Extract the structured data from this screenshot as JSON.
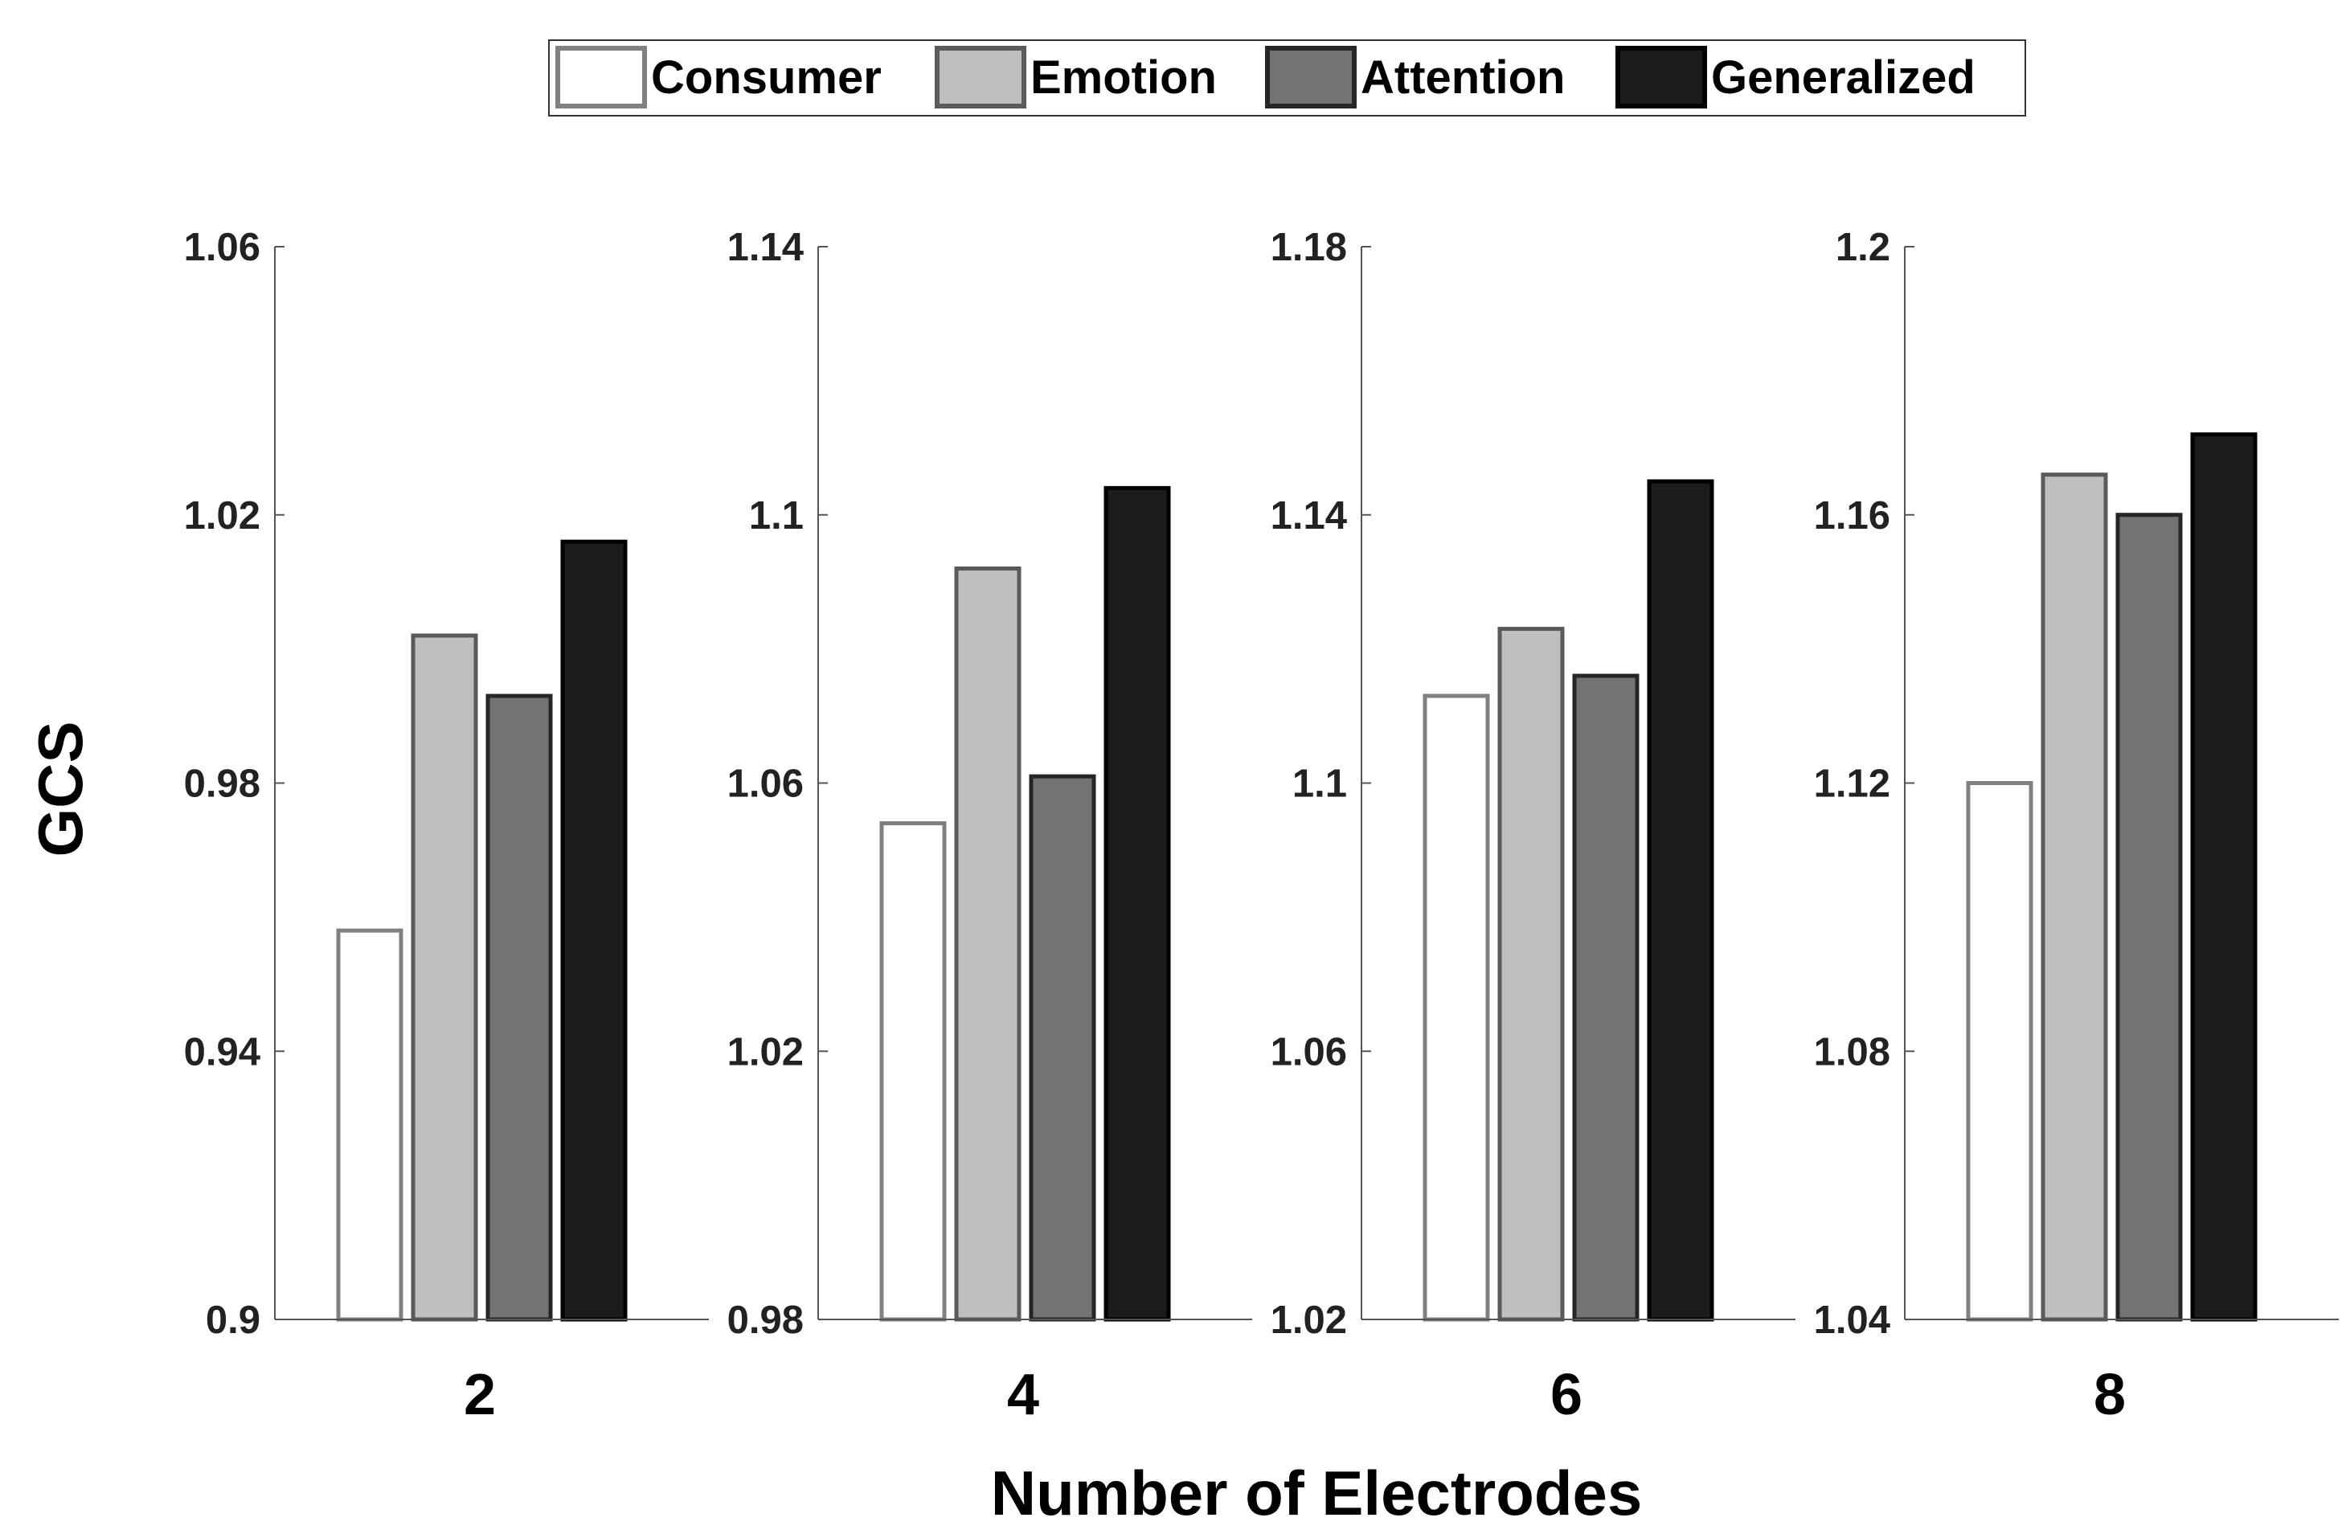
{
  "chart_data": {
    "type": "bar",
    "title": "",
    "xlabel": "Number of Electrodes",
    "ylabel": "GCS",
    "legend": {
      "placement": "top-center",
      "entries": [
        {
          "name": "Consumer",
          "fill": "#ffffff",
          "stroke": "#808080"
        },
        {
          "name": "Emotion",
          "fill": "#bfbfbf",
          "stroke": "#5a5a5a"
        },
        {
          "name": "Attention",
          "fill": "#737373",
          "stroke": "#262626"
        },
        {
          "name": "Generalized",
          "fill": "#1c1c1c",
          "stroke": "#000000"
        }
      ]
    },
    "series_names": [
      "Consumer",
      "Emotion",
      "Attention",
      "Generalized"
    ],
    "panels": [
      {
        "category": "2",
        "ylim": [
          0.9,
          1.06
        ],
        "ticks": [
          "0.9",
          "0.94",
          "0.98",
          "1.02",
          "1.06"
        ],
        "values": [
          0.958,
          1.002,
          0.993,
          1.016
        ]
      },
      {
        "category": "4",
        "ylim": [
          0.98,
          1.14
        ],
        "ticks": [
          "0.98",
          "1.02",
          "1.06",
          "1.1",
          "1.14"
        ],
        "values": [
          1.054,
          1.092,
          1.061,
          1.104
        ]
      },
      {
        "category": "6",
        "ylim": [
          1.02,
          1.18
        ],
        "ticks": [
          "1.02",
          "1.06",
          "1.1",
          "1.14",
          "1.18"
        ],
        "values": [
          1.113,
          1.123,
          1.116,
          1.145
        ]
      },
      {
        "category": "8",
        "ylim": [
          1.04,
          1.2
        ],
        "ticks": [
          "1.04",
          "1.08",
          "1.12",
          "1.16",
          "1.2"
        ],
        "values": [
          1.12,
          1.166,
          1.16,
          1.172
        ]
      }
    ],
    "grid": false
  }
}
